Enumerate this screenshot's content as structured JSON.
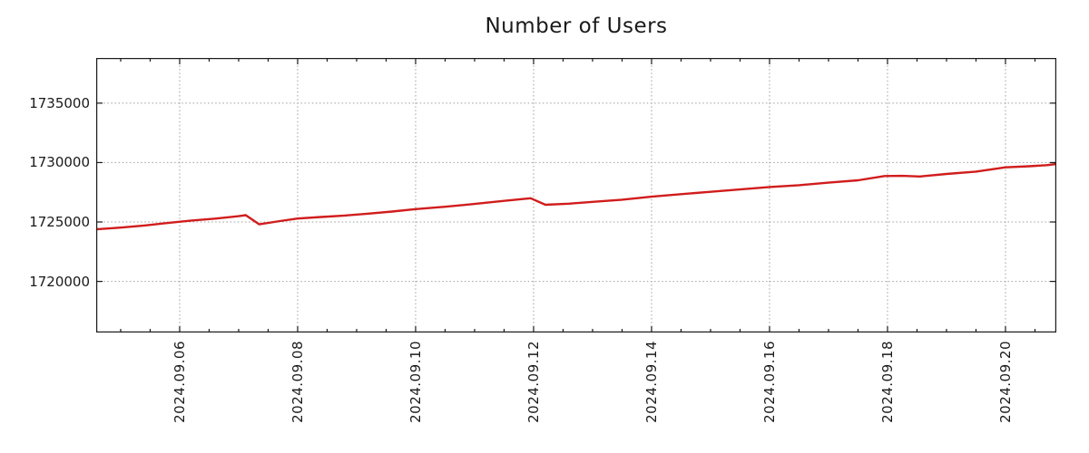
{
  "title": "Number of Users",
  "colors": {
    "line": "#d11c1c",
    "grid": "#9e9e9e",
    "axis": "#1a1a1a",
    "text": "#1a1a1a",
    "background": "#ffffff"
  },
  "chart_data": {
    "type": "line",
    "title": "Number of Users",
    "xlabel": "",
    "ylabel": "",
    "legend": "none",
    "grid": "dotted",
    "x_unit": "date (September 2024, fractional day of month)",
    "xlim": [
      4.585,
      20.862
    ],
    "ylim": [
      1715700,
      1738800
    ],
    "x_major_ticks": [
      {
        "label": "2024.09.06",
        "x": 6
      },
      {
        "label": "2024.09.08",
        "x": 8
      },
      {
        "label": "2024.09.10",
        "x": 10
      },
      {
        "label": "2024.09.12",
        "x": 12
      },
      {
        "label": "2024.09.14",
        "x": 14
      },
      {
        "label": "2024.09.16",
        "x": 16
      },
      {
        "label": "2024.09.18",
        "x": 18
      },
      {
        "label": "2024.09.20",
        "x": 20
      }
    ],
    "x_minor_tick_step": 0.5,
    "y_ticks": [
      {
        "label": "1720000",
        "value": 1720000
      },
      {
        "label": "1725000",
        "value": 1725000
      },
      {
        "label": "1730000",
        "value": 1730000
      },
      {
        "label": "1735000",
        "value": 1735000
      }
    ],
    "series": [
      {
        "name": "users",
        "color": "#d11c1c",
        "points": [
          [
            4.585,
            1724380
          ],
          [
            5.0,
            1724530
          ],
          [
            5.4,
            1724700
          ],
          [
            5.8,
            1724920
          ],
          [
            6.2,
            1725120
          ],
          [
            6.6,
            1725280
          ],
          [
            7.0,
            1725490
          ],
          [
            7.12,
            1725570
          ],
          [
            7.35,
            1724800
          ],
          [
            7.7,
            1725080
          ],
          [
            8.0,
            1725290
          ],
          [
            8.4,
            1725420
          ],
          [
            8.8,
            1725540
          ],
          [
            9.2,
            1725700
          ],
          [
            9.6,
            1725880
          ],
          [
            10.0,
            1726080
          ],
          [
            10.5,
            1726280
          ],
          [
            11.0,
            1726520
          ],
          [
            11.5,
            1726780
          ],
          [
            11.95,
            1727000
          ],
          [
            12.2,
            1726450
          ],
          [
            12.6,
            1726540
          ],
          [
            13.0,
            1726690
          ],
          [
            13.5,
            1726880
          ],
          [
            14.0,
            1727130
          ],
          [
            14.5,
            1727340
          ],
          [
            15.0,
            1727540
          ],
          [
            15.5,
            1727740
          ],
          [
            16.0,
            1727940
          ],
          [
            16.5,
            1728100
          ],
          [
            17.0,
            1728310
          ],
          [
            17.5,
            1728510
          ],
          [
            17.95,
            1728870
          ],
          [
            18.25,
            1728880
          ],
          [
            18.55,
            1728830
          ],
          [
            19.0,
            1729040
          ],
          [
            19.5,
            1729240
          ],
          [
            20.0,
            1729600
          ],
          [
            20.4,
            1729690
          ],
          [
            20.7,
            1729780
          ],
          [
            20.862,
            1729880
          ]
        ]
      }
    ]
  }
}
